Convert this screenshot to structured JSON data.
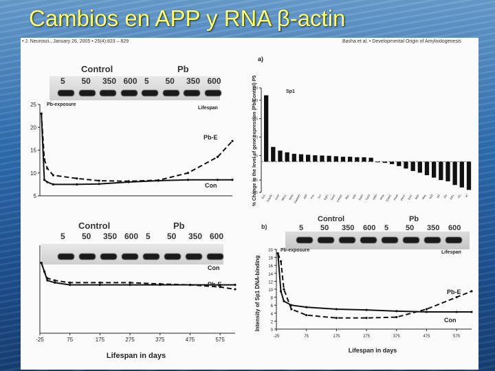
{
  "slide": {
    "title": "Cambios en APP y RNA β-actin"
  },
  "figure": {
    "header_left": "• J. Neurosci., January 26, 2005 • 25(4):823 – 829",
    "header_right": "Basha et al. • Developmental Origin of Amyloidogenesis"
  },
  "blot_top_left": {
    "groups": [
      "Control",
      "Pb"
    ],
    "doses": [
      "5",
      "50",
      "350",
      "600",
      "5",
      "50",
      "350",
      "600"
    ]
  },
  "blot_bottom_left": {
    "groups": [
      "Control",
      "Pb"
    ],
    "doses": [
      "5",
      "50",
      "350",
      "600",
      "5",
      "50",
      "350",
      "600"
    ]
  },
  "blot_b": {
    "panel_letter": "b)",
    "groups": [
      "Control",
      "Pb"
    ],
    "doses": [
      "5",
      "50",
      "350",
      "600",
      "5",
      "50",
      "350",
      "600"
    ]
  },
  "chart_data": [
    {
      "type": "line",
      "panel": "top-left",
      "yticks": [
        5,
        10,
        15,
        20,
        25
      ],
      "ylim": [
        5,
        25
      ],
      "xlim": [
        -25,
        625
      ],
      "annotations": [
        "Pb-exposure",
        "Lifespan"
      ],
      "series": [
        {
          "name": "Pb-E",
          "style": "dashed",
          "x": [
            -20,
            -10,
            0,
            20,
            100,
            175,
            275,
            375,
            475,
            575,
            625
          ],
          "y": [
            23,
            13,
            11,
            9.5,
            8.8,
            8.3,
            8.2,
            8.4,
            10,
            13.5,
            17
          ]
        },
        {
          "name": "Con",
          "style": "solid",
          "x": [
            -20,
            -10,
            0,
            20,
            100,
            175,
            275,
            375,
            475,
            575,
            625
          ],
          "y": [
            23,
            8.5,
            8,
            7.5,
            7.5,
            7.6,
            8,
            8.3,
            8.5,
            8.5,
            8.5
          ]
        }
      ]
    },
    {
      "type": "line",
      "panel": "bottom-left",
      "xticks": [
        -25,
        75,
        175,
        275,
        375,
        475,
        575
      ],
      "xlim": [
        -25,
        625
      ],
      "ylim": [
        0,
        20
      ],
      "xlabel": "Lifespan in days",
      "series": [
        {
          "name": "Con",
          "style": "solid",
          "x": [
            -20,
            -10,
            0,
            25,
            75,
            175,
            275,
            375,
            475,
            575,
            625
          ],
          "y": [
            16,
            14,
            12,
            11.5,
            11,
            11,
            11,
            11,
            11,
            11,
            11
          ]
        },
        {
          "name": "Pb-E",
          "style": "dashed",
          "x": [
            -20,
            -10,
            0,
            25,
            75,
            175,
            275,
            375,
            475,
            575,
            625
          ],
          "y": [
            16,
            14,
            12.5,
            12,
            11.5,
            11.5,
            11.5,
            11.2,
            11,
            10.5,
            10
          ]
        }
      ]
    },
    {
      "type": "bar",
      "panel": "a)",
      "panel_letter": "a)",
      "ylabel": "% Change in the level of gene expression (Pb/Control) P5",
      "yticks": [
        -125,
        -75,
        25,
        100,
        175,
        250,
        300
      ],
      "ylim": [
        -125,
        300
      ],
      "categories": [
        "Sp1",
        "Pde4b",
        "Creb",
        "Mkp1",
        "Nr4a",
        "Gadd45",
        "Atf4",
        "Fos",
        "Jun",
        "Egr1",
        "Sox2",
        "Cebpb",
        "Myc",
        "Klf4",
        "Stat3",
        "Tp53",
        "Nfkb",
        "Rela",
        "Gata1",
        "Pax6",
        "Hes1",
        "Ets1",
        "Myb",
        "Max",
        "Tcf3",
        "Id2",
        "Zfp",
        "Elk1",
        "Irf1",
        "Ar"
      ],
      "values": [
        270,
        60,
        45,
        38,
        32,
        30,
        28,
        26,
        25,
        24,
        22,
        20,
        20,
        18,
        18,
        16,
        -2,
        -5,
        -10,
        -18,
        -28,
        -38,
        -45,
        -55,
        -65,
        -75,
        -80,
        -95,
        -105,
        -115
      ],
      "annotations": [
        "Sp1"
      ]
    },
    {
      "type": "line",
      "panel": "b)",
      "ylabel": "Intensity of Sp1 DNA-binding",
      "xlabel": "Lifespan in days",
      "xticks": [
        -25,
        75,
        175,
        275,
        375,
        475,
        575
      ],
      "yticks": [
        0,
        2,
        4,
        6,
        8,
        10,
        12,
        14,
        16,
        18,
        20
      ],
      "xlim": [
        -25,
        625
      ],
      "ylim": [
        0,
        20
      ],
      "annotations": [
        "Pb-exposure",
        "Lifespan"
      ],
      "series": [
        {
          "name": "Pb-E",
          "style": "dashed",
          "x": [
            -20,
            -10,
            0,
            25,
            75,
            175,
            275,
            375,
            475,
            575,
            625
          ],
          "y": [
            19,
            17,
            10,
            5,
            3.5,
            2.8,
            2.8,
            3,
            5,
            8,
            9.5
          ]
        },
        {
          "name": "Con",
          "style": "solid",
          "x": [
            -20,
            -10,
            0,
            25,
            75,
            175,
            275,
            375,
            475,
            575,
            625
          ],
          "y": [
            19,
            9.5,
            7,
            6,
            5.5,
            5,
            4.8,
            4.5,
            4.3,
            4.3,
            4.3
          ]
        }
      ]
    }
  ]
}
